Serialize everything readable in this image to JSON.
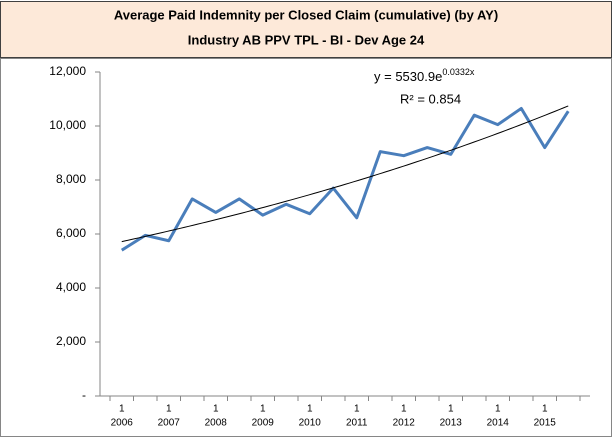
{
  "chart_data": {
    "type": "line",
    "title": "Average Paid Indemnity per Closed Claim (cumulative) (by AY)",
    "subtitle": "Industry AB PPV TPL - BI - Dev Age 24",
    "categories": [
      "1",
      null,
      "1",
      null,
      "1",
      null,
      "1",
      null,
      "1",
      null,
      "1",
      null,
      "1",
      null,
      "1",
      null,
      "1",
      null,
      "1",
      null
    ],
    "category_years": [
      "2006",
      null,
      "2007",
      null,
      "2008",
      null,
      "2009",
      null,
      "2010",
      null,
      "2011",
      null,
      "2012",
      null,
      "2013",
      null,
      "2014",
      null,
      "2015",
      null
    ],
    "series": [
      {
        "name": "Average Paid Indemnity",
        "color": "#4a7ebb",
        "values": [
          5400,
          5950,
          5750,
          7300,
          6800,
          7300,
          6700,
          7100,
          6750,
          7700,
          6600,
          9050,
          8900,
          9200,
          8950,
          10400,
          10050,
          10650,
          9200,
          10550
        ]
      }
    ],
    "trendline": {
      "type": "exponential",
      "a": 5530.9,
      "b": 0.0332,
      "color": "#000000",
      "equation_base": "y = 5530.9e",
      "equation_exponent": "0.0332x",
      "r_squared_label": "R² = 0.854"
    },
    "ylim": [
      0,
      12000
    ],
    "yticks": [
      {
        "value": 0,
        "label": "-"
      },
      {
        "value": 2000,
        "label": "2,000"
      },
      {
        "value": 4000,
        "label": "4,000"
      },
      {
        "value": 6000,
        "label": "6,000"
      },
      {
        "value": 8000,
        "label": "8,000"
      },
      {
        "value": 10000,
        "label": "10,000"
      },
      {
        "value": 12000,
        "label": "12,000"
      }
    ],
    "grid": false
  }
}
